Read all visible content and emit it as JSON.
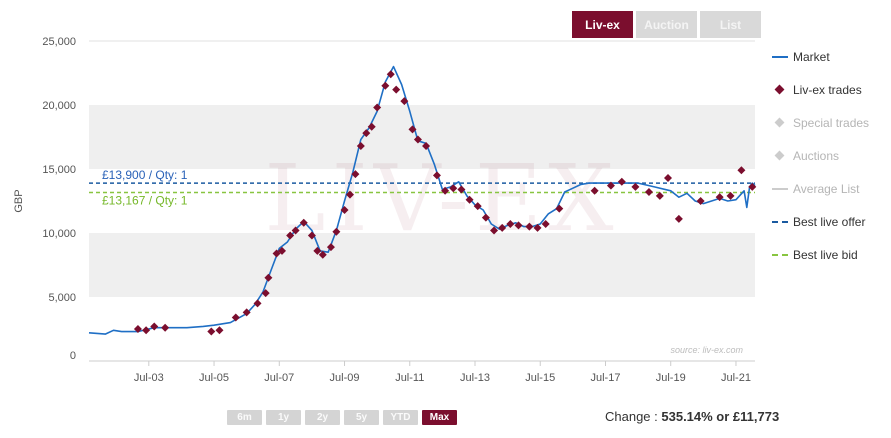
{
  "tabs": [
    {
      "label": "Liv-ex",
      "active": true
    },
    {
      "label": "Auction",
      "active": false
    },
    {
      "label": "List",
      "active": false
    }
  ],
  "legend": {
    "market": "Market",
    "trades": "Liv-ex trades",
    "special": "Special trades",
    "auctions": "Auctions",
    "average_list": "Average List",
    "best_offer": "Best live offer",
    "best_bid": "Best live bid"
  },
  "range_buttons": [
    {
      "label": "6m",
      "active": false
    },
    {
      "label": "1y",
      "active": false
    },
    {
      "label": "2y",
      "active": false
    },
    {
      "label": "5y",
      "active": false
    },
    {
      "label": "YTD",
      "active": false
    },
    {
      "label": "Max",
      "active": true
    }
  ],
  "change": {
    "label": "Change : ",
    "value": "535.14% or £11,773"
  },
  "colors": {
    "brand": "#7b0e2e",
    "market_line": "#1f6fc5",
    "offer_line": "#1a5aa0",
    "bid_line": "#88c540",
    "offer_text": "#2a62b8",
    "bid_text": "#76b82a"
  },
  "chart_data": {
    "type": "line",
    "ylabel": "GBP",
    "xlabel": "",
    "ylim": [
      0,
      25000
    ],
    "xlim": [
      "2001-09",
      "2022-02"
    ],
    "y_ticks": [
      "0",
      "5,000",
      "10,000",
      "15,000",
      "20,000",
      "25,000"
    ],
    "x_ticks": [
      "Jul-03",
      "Jul-05",
      "Jul-07",
      "Jul-09",
      "Jul-11",
      "Jul-13",
      "Jul-15",
      "Jul-17",
      "Jul-19",
      "Jul-21"
    ],
    "source": "source: liv-ex.com",
    "watermark": "LIV-EX",
    "reference_lines": [
      {
        "name": "Best live offer",
        "value": 13900,
        "label": "£13,900 / Qty: 1"
      },
      {
        "name": "Best live bid",
        "value": 13167,
        "label": "£13,167 / Qty: 1"
      }
    ],
    "series": [
      {
        "name": "Market",
        "style": "line",
        "points": [
          [
            "2001-09",
            2200
          ],
          [
            "2002-03",
            2100
          ],
          [
            "2002-06",
            2400
          ],
          [
            "2002-09",
            2300
          ],
          [
            "2003-03",
            2300
          ],
          [
            "2003-09",
            2600
          ],
          [
            "2004-03",
            2600
          ],
          [
            "2004-09",
            2600
          ],
          [
            "2005-03",
            2700
          ],
          [
            "2005-07",
            2800
          ],
          [
            "2006-01",
            3000
          ],
          [
            "2006-07",
            3700
          ],
          [
            "2006-10",
            4400
          ],
          [
            "2007-01",
            5400
          ],
          [
            "2007-04",
            7100
          ],
          [
            "2007-07",
            8800
          ],
          [
            "2007-10",
            9300
          ],
          [
            "2008-01",
            10300
          ],
          [
            "2008-04",
            10900
          ],
          [
            "2008-07",
            10200
          ],
          [
            "2008-10",
            8600
          ],
          [
            "2009-01",
            8500
          ],
          [
            "2009-04",
            10200
          ],
          [
            "2009-07",
            12500
          ],
          [
            "2009-10",
            14700
          ],
          [
            "2010-01",
            17300
          ],
          [
            "2010-04",
            18200
          ],
          [
            "2010-07",
            19500
          ],
          [
            "2010-10",
            21800
          ],
          [
            "2011-01",
            23000
          ],
          [
            "2011-04",
            21600
          ],
          [
            "2011-07",
            19500
          ],
          [
            "2011-10",
            17200
          ],
          [
            "2012-01",
            17000
          ],
          [
            "2012-04",
            15400
          ],
          [
            "2012-07",
            13400
          ],
          [
            "2012-10",
            13600
          ],
          [
            "2013-01",
            14000
          ],
          [
            "2013-04",
            12900
          ],
          [
            "2013-07",
            12200
          ],
          [
            "2013-10",
            11800
          ],
          [
            "2014-01",
            10700
          ],
          [
            "2014-04",
            10300
          ],
          [
            "2014-07",
            10600
          ],
          [
            "2014-10",
            10800
          ],
          [
            "2015-01",
            10500
          ],
          [
            "2015-04",
            10500
          ],
          [
            "2015-07",
            10700
          ],
          [
            "2015-10",
            11500
          ],
          [
            "2016-01",
            11900
          ],
          [
            "2016-04",
            13200
          ],
          [
            "2016-07",
            13500
          ],
          [
            "2016-10",
            13800
          ],
          [
            "2017-01",
            13900
          ],
          [
            "2017-07",
            13900
          ],
          [
            "2018-01",
            13900
          ],
          [
            "2018-07",
            13900
          ],
          [
            "2019-01",
            13600
          ],
          [
            "2019-07",
            13300
          ],
          [
            "2019-10",
            12800
          ],
          [
            "2020-01",
            13100
          ],
          [
            "2020-04",
            12500
          ],
          [
            "2020-07",
            12300
          ],
          [
            "2021-01",
            12700
          ],
          [
            "2021-04",
            12500
          ],
          [
            "2021-07",
            12600
          ],
          [
            "2021-10",
            13300
          ],
          [
            "2021-11",
            12000
          ],
          [
            "2021-12",
            13600
          ],
          [
            "2022-01",
            13900
          ],
          [
            "2022-02",
            13700
          ]
        ]
      },
      {
        "name": "Liv-ex trades",
        "style": "marker",
        "points": [
          [
            "2003-03",
            2500
          ],
          [
            "2003-06",
            2400
          ],
          [
            "2003-09",
            2700
          ],
          [
            "2004-01",
            2600
          ],
          [
            "2005-06",
            2300
          ],
          [
            "2005-09",
            2400
          ],
          [
            "2006-03",
            3400
          ],
          [
            "2006-07",
            3800
          ],
          [
            "2006-11",
            4500
          ],
          [
            "2007-02",
            5300
          ],
          [
            "2007-03",
            6500
          ],
          [
            "2007-06",
            8400
          ],
          [
            "2007-08",
            8600
          ],
          [
            "2007-11",
            9800
          ],
          [
            "2008-01",
            10200
          ],
          [
            "2008-04",
            10800
          ],
          [
            "2008-07",
            9800
          ],
          [
            "2008-09",
            8600
          ],
          [
            "2008-11",
            8300
          ],
          [
            "2009-02",
            8900
          ],
          [
            "2009-04",
            10100
          ],
          [
            "2009-07",
            11800
          ],
          [
            "2009-09",
            13000
          ],
          [
            "2009-11",
            14600
          ],
          [
            "2010-01",
            16800
          ],
          [
            "2010-03",
            17800
          ],
          [
            "2010-05",
            18300
          ],
          [
            "2010-07",
            19800
          ],
          [
            "2010-10",
            21500
          ],
          [
            "2010-12",
            22400
          ],
          [
            "2011-02",
            21200
          ],
          [
            "2011-05",
            20300
          ],
          [
            "2011-08",
            18100
          ],
          [
            "2011-10",
            17300
          ],
          [
            "2012-01",
            16800
          ],
          [
            "2012-05",
            14500
          ],
          [
            "2012-08",
            13300
          ],
          [
            "2012-11",
            13500
          ],
          [
            "2013-02",
            13400
          ],
          [
            "2013-05",
            12600
          ],
          [
            "2013-08",
            12100
          ],
          [
            "2013-11",
            11200
          ],
          [
            "2014-02",
            10200
          ],
          [
            "2014-05",
            10400
          ],
          [
            "2014-08",
            10700
          ],
          [
            "2014-11",
            10600
          ],
          [
            "2015-03",
            10500
          ],
          [
            "2015-06",
            10400
          ],
          [
            "2015-09",
            10700
          ],
          [
            "2016-02",
            11900
          ],
          [
            "2017-03",
            13300
          ],
          [
            "2017-09",
            13700
          ],
          [
            "2018-01",
            14000
          ],
          [
            "2018-06",
            13600
          ],
          [
            "2018-11",
            13200
          ],
          [
            "2019-03",
            12900
          ],
          [
            "2019-06",
            14300
          ],
          [
            "2019-10",
            11100
          ],
          [
            "2020-06",
            12500
          ],
          [
            "2021-01",
            12800
          ],
          [
            "2021-05",
            12900
          ],
          [
            "2021-09",
            14900
          ],
          [
            "2022-01",
            13600
          ]
        ]
      }
    ]
  }
}
